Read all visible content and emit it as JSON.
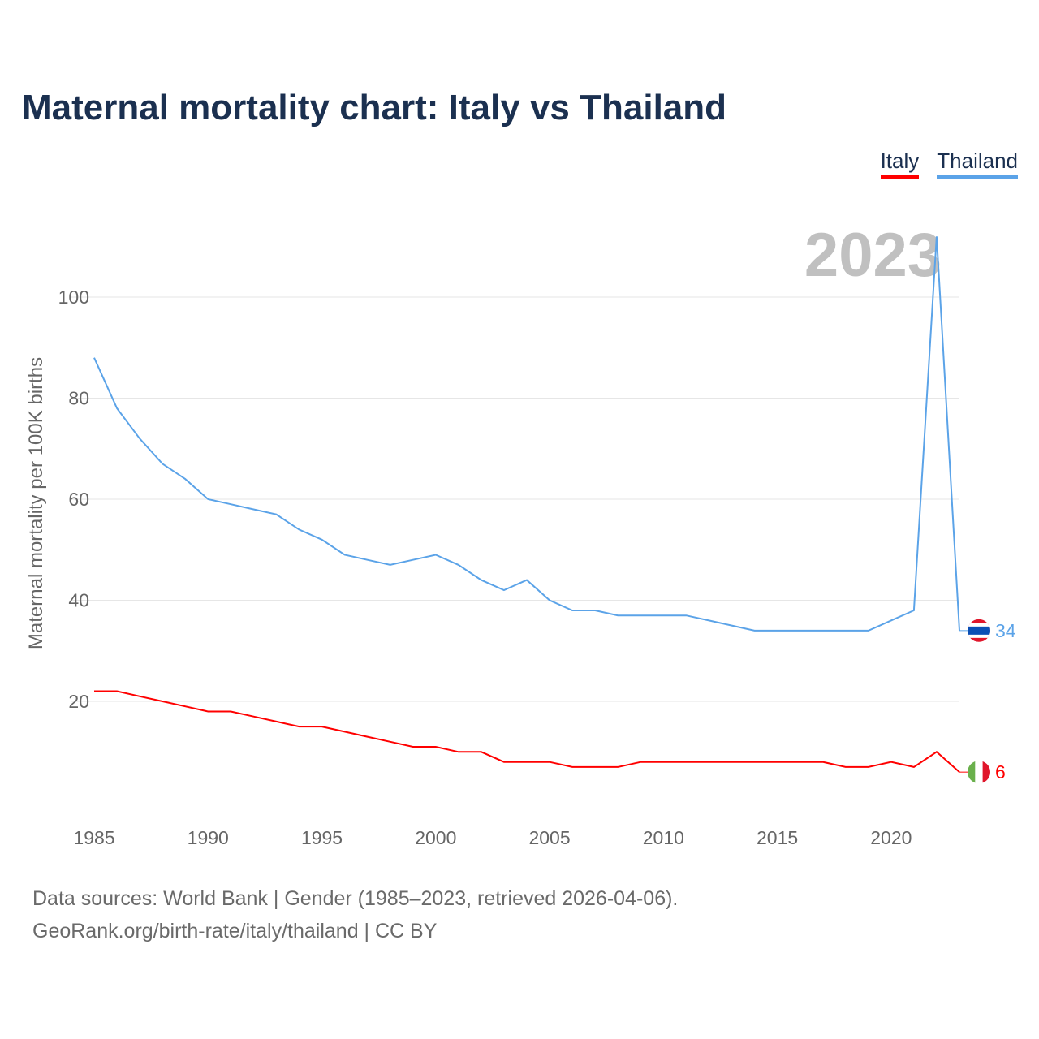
{
  "chart_data": {
    "type": "line",
    "title": "Maternal mortality chart: Italy vs Thailand",
    "xlabel": "",
    "ylabel": "Maternal mortality per 100K births",
    "x": [
      1985,
      1986,
      1987,
      1988,
      1989,
      1990,
      1991,
      1992,
      1993,
      1994,
      1995,
      1996,
      1997,
      1998,
      1999,
      2000,
      2001,
      2002,
      2003,
      2004,
      2005,
      2006,
      2007,
      2008,
      2009,
      2010,
      2011,
      2012,
      2013,
      2014,
      2015,
      2016,
      2017,
      2018,
      2019,
      2020,
      2021,
      2022,
      2023
    ],
    "xlim": [
      1985,
      2023
    ],
    "ylim": [
      0,
      115
    ],
    "xticks": [
      "1985",
      "1990",
      "1995",
      "2000",
      "2005",
      "2010",
      "2015",
      "2020"
    ],
    "yticks": [
      "20",
      "40",
      "60",
      "80",
      "100"
    ],
    "grid": true,
    "legend_position": "top-right",
    "year_watermark": "2023",
    "series": [
      {
        "name": "Italy",
        "color": "#ff0000",
        "end_label": "6",
        "values": [
          22,
          22,
          21,
          20,
          19,
          18,
          18,
          17,
          16,
          15,
          15,
          14,
          13,
          12,
          11,
          11,
          10,
          10,
          8,
          8,
          8,
          7,
          7,
          7,
          8,
          8,
          8,
          8,
          8,
          8,
          8,
          8,
          8,
          7,
          7,
          8,
          7,
          10,
          6
        ]
      },
      {
        "name": "Thailand",
        "color": "#5ba3e8",
        "end_label": "34",
        "values": [
          88,
          78,
          72,
          67,
          64,
          60,
          59,
          58,
          57,
          54,
          52,
          49,
          48,
          47,
          48,
          49,
          47,
          44,
          42,
          44,
          40,
          38,
          38,
          37,
          37,
          37,
          37,
          36,
          35,
          34,
          34,
          34,
          34,
          34,
          34,
          36,
          38,
          112,
          34
        ]
      }
    ]
  },
  "footer": {
    "line1": "Data sources: World Bank | Gender (1985–2023, retrieved 2026-04-06).",
    "line2": "GeoRank.org/birth-rate/italy/thailand | CC BY"
  }
}
